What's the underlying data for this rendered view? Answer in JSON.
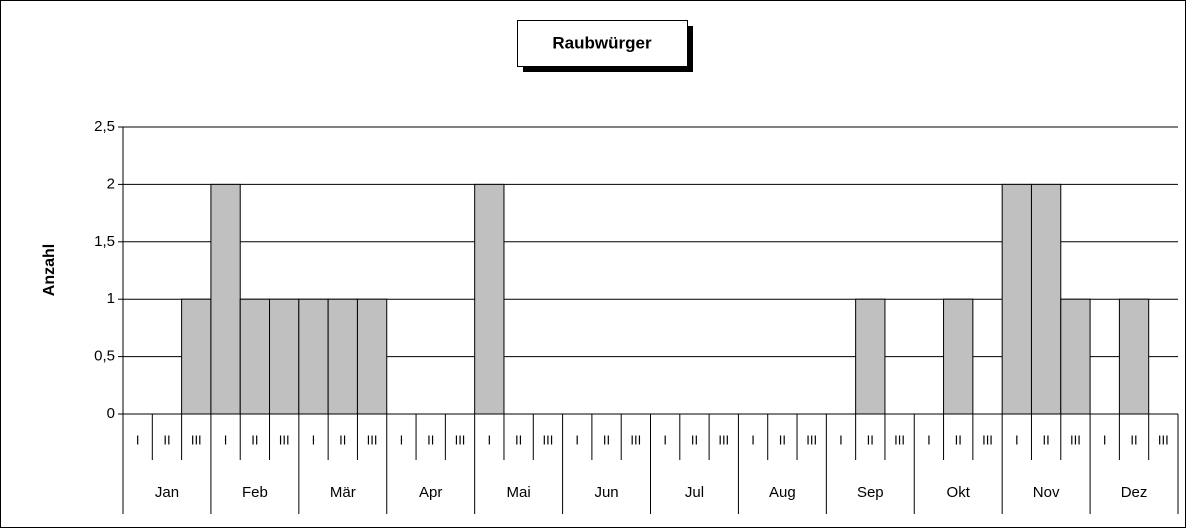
{
  "chart_data": {
    "type": "bar",
    "title": "Raubwürger",
    "y_label": "Anzahl",
    "categories": [
      "I",
      "II",
      "III",
      "I",
      "II",
      "III",
      "I",
      "II",
      "III",
      "I",
      "II",
      "III",
      "I",
      "II",
      "III",
      "I",
      "II",
      "III",
      "I",
      "II",
      "III",
      "I",
      "II",
      "III",
      "I",
      "II",
      "III",
      "I",
      "II",
      "III",
      "I",
      "II",
      "III",
      "I",
      "II",
      "III"
    ],
    "category_groups": [
      "Jan",
      "Feb",
      "Mär",
      "Apr",
      "Mai",
      "Jun",
      "Jul",
      "Aug",
      "Sep",
      "Okt",
      "Nov",
      "Dez"
    ],
    "values": [
      0,
      0,
      1,
      2,
      1,
      1,
      1,
      1,
      1,
      0,
      0,
      0,
      2,
      0,
      0,
      0,
      0,
      0,
      0,
      0,
      0,
      0,
      0,
      0,
      0,
      1,
      0,
      0,
      1,
      0,
      2,
      2,
      1,
      0,
      1,
      0
    ],
    "color": "#c0c0c0",
    "ylim": [
      0,
      2.5
    ],
    "yticks": [
      0,
      {
        "value": 0.5,
        "label": "0,5"
      },
      1,
      {
        "value": 1.5,
        "label": "1,5"
      },
      2,
      {
        "value": 2.5,
        "label": "2,5"
      }
    ],
    "grid": true
  }
}
